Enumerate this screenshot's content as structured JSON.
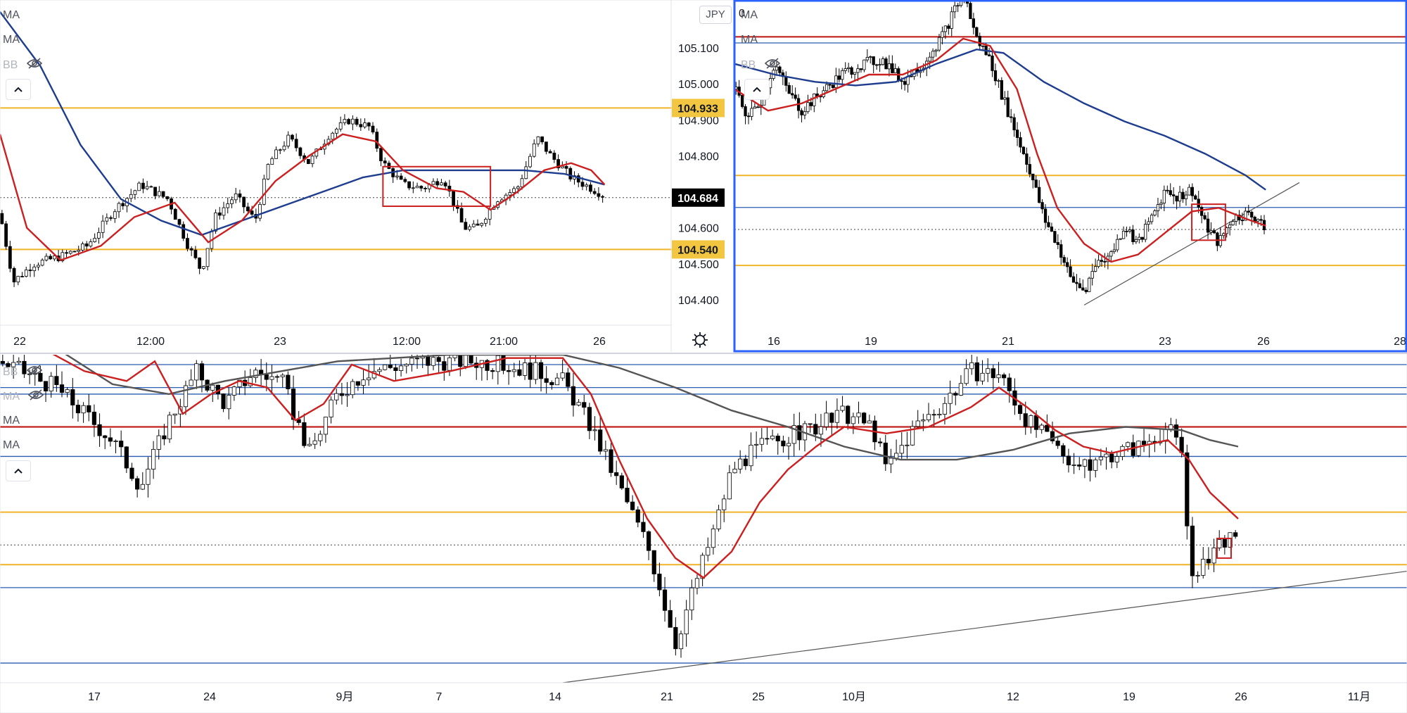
{
  "currency_button": "JPY",
  "indicators": {
    "ma": "MA",
    "bb": "BB"
  },
  "icons": {
    "eye_hidden": "eye-off-icon",
    "collapse": "chevron-up-icon",
    "settings": "gear-icon"
  },
  "colors": {
    "ma_fast": "#cc1f1f",
    "ma_slow_blue": "#1e3d8f",
    "ma_slow_gray": "#555555",
    "horizontal_orange": "#f0b429",
    "horizontal_red": "#c0201d",
    "horizontal_blue": "#2a5db0",
    "highlight_box": "#cc1f1f",
    "active_border": "#2962ff",
    "price_label_gold": "#f2c641",
    "price_label_black": "#000000"
  },
  "chart_data": [
    {
      "type": "candlestick",
      "panel": "top-left",
      "timeframe_hint": "intraday",
      "x_ticks": [
        "22",
        "12:00",
        "23",
        "12:00",
        "21:00",
        "26"
      ],
      "y_axis": {
        "ticks": [
          "105.100",
          "105.000",
          "104.900",
          "104.800",
          "104.600",
          "104.500",
          "104.400"
        ],
        "ylim": [
          104.34,
          105.2
        ]
      },
      "price_labels": [
        {
          "text": "104.933",
          "value": 104.933,
          "style": "gold"
        },
        {
          "text": "104.684",
          "value": 104.684,
          "style": "black"
        },
        {
          "text": "104.540",
          "value": 104.54,
          "style": "gold"
        }
      ],
      "horizontal_lines": [
        {
          "value": 104.933,
          "color": "orange"
        },
        {
          "value": 104.54,
          "color": "orange"
        },
        {
          "value": 104.684,
          "color": "dotted"
        }
      ],
      "highlight_box": {
        "x_start": 0.57,
        "x_end": 0.73,
        "y_top": 104.77,
        "y_bottom": 104.66
      },
      "close_path": [
        [
          0.0,
          104.64
        ],
        [
          0.02,
          104.45
        ],
        [
          0.05,
          104.5
        ],
        [
          0.09,
          104.52
        ],
        [
          0.13,
          104.55
        ],
        [
          0.17,
          104.65
        ],
        [
          0.21,
          104.72
        ],
        [
          0.25,
          104.68
        ],
        [
          0.28,
          104.55
        ],
        [
          0.3,
          104.48
        ],
        [
          0.32,
          104.63
        ],
        [
          0.35,
          104.69
        ],
        [
          0.38,
          104.62
        ],
        [
          0.4,
          104.78
        ],
        [
          0.43,
          104.85
        ],
        [
          0.46,
          104.78
        ],
        [
          0.49,
          104.86
        ],
        [
          0.52,
          104.9
        ],
        [
          0.55,
          104.88
        ],
        [
          0.57,
          104.78
        ],
        [
          0.6,
          104.72
        ],
        [
          0.63,
          104.71
        ],
        [
          0.66,
          104.74
        ],
        [
          0.69,
          104.6
        ],
        [
          0.71,
          104.6
        ],
        [
          0.74,
          104.68
        ],
        [
          0.77,
          104.71
        ],
        [
          0.8,
          104.85
        ],
        [
          0.82,
          104.8
        ],
        [
          0.85,
          104.74
        ],
        [
          0.88,
          104.71
        ],
        [
          0.9,
          104.69
        ]
      ],
      "ma_fast_path": [
        [
          0.0,
          104.86
        ],
        [
          0.04,
          104.6
        ],
        [
          0.09,
          104.51
        ],
        [
          0.15,
          104.55
        ],
        [
          0.2,
          104.63
        ],
        [
          0.26,
          104.67
        ],
        [
          0.31,
          104.56
        ],
        [
          0.36,
          104.62
        ],
        [
          0.41,
          104.73
        ],
        [
          0.46,
          104.8
        ],
        [
          0.51,
          104.86
        ],
        [
          0.56,
          104.84
        ],
        [
          0.6,
          104.76
        ],
        [
          0.65,
          104.71
        ],
        [
          0.69,
          104.7
        ],
        [
          0.73,
          104.65
        ],
        [
          0.77,
          104.7
        ],
        [
          0.81,
          104.76
        ],
        [
          0.85,
          104.78
        ],
        [
          0.88,
          104.76
        ],
        [
          0.9,
          104.72
        ]
      ],
      "ma_slow_path": [
        [
          0.0,
          105.2
        ],
        [
          0.06,
          105.05
        ],
        [
          0.12,
          104.83
        ],
        [
          0.18,
          104.68
        ],
        [
          0.24,
          104.62
        ],
        [
          0.3,
          104.58
        ],
        [
          0.36,
          104.62
        ],
        [
          0.42,
          104.66
        ],
        [
          0.48,
          104.7
        ],
        [
          0.54,
          104.74
        ],
        [
          0.6,
          104.76
        ],
        [
          0.66,
          104.76
        ],
        [
          0.72,
          104.76
        ],
        [
          0.78,
          104.76
        ],
        [
          0.84,
          104.75
        ],
        [
          0.9,
          104.72
        ]
      ]
    },
    {
      "type": "candlestick",
      "panel": "top-right",
      "x_ticks": [
        "16",
        "19",
        "21",
        "23",
        "26",
        "28"
      ],
      "horizontal_lines": [
        {
          "value": 105.125,
          "color": "red"
        },
        {
          "value": 105.108,
          "color": "blue"
        },
        {
          "value": 104.74,
          "color": "orange"
        },
        {
          "value": 104.651,
          "color": "blue"
        },
        {
          "value": 104.59,
          "color": "dotted"
        },
        {
          "value": 104.49,
          "color": "orange"
        }
      ],
      "trendline": [
        [
          0.52,
          104.38
        ],
        [
          0.84,
          104.72
        ]
      ],
      "highlight_box": {
        "x_start": 0.68,
        "x_end": 0.73,
        "y_top": 104.66,
        "y_bottom": 104.56
      },
      "close_path": [
        [
          0.0,
          104.98
        ],
        [
          0.02,
          104.9
        ],
        [
          0.04,
          104.95
        ],
        [
          0.06,
          105.05
        ],
        [
          0.08,
          104.97
        ],
        [
          0.1,
          104.92
        ],
        [
          0.13,
          104.97
        ],
        [
          0.16,
          105.02
        ],
        [
          0.19,
          105.05
        ],
        [
          0.22,
          105.06
        ],
        [
          0.25,
          105.0
        ],
        [
          0.28,
          105.05
        ],
        [
          0.31,
          105.13
        ],
        [
          0.34,
          105.25
        ],
        [
          0.36,
          105.12
        ],
        [
          0.38,
          105.06
        ],
        [
          0.4,
          104.95
        ],
        [
          0.42,
          104.85
        ],
        [
          0.44,
          104.75
        ],
        [
          0.46,
          104.62
        ],
        [
          0.48,
          104.55
        ],
        [
          0.5,
          104.45
        ],
        [
          0.52,
          104.42
        ],
        [
          0.54,
          104.5
        ],
        [
          0.56,
          104.52
        ],
        [
          0.58,
          104.6
        ],
        [
          0.6,
          104.55
        ],
        [
          0.62,
          104.62
        ],
        [
          0.64,
          104.7
        ],
        [
          0.66,
          104.68
        ],
        [
          0.68,
          104.7
        ],
        [
          0.7,
          104.6
        ],
        [
          0.72,
          104.55
        ],
        [
          0.74,
          104.62
        ],
        [
          0.76,
          104.63
        ],
        [
          0.78,
          104.62
        ],
        [
          0.79,
          104.6
        ]
      ],
      "ma_fast_path": [
        [
          0.0,
          104.98
        ],
        [
          0.05,
          104.92
        ],
        [
          0.1,
          104.94
        ],
        [
          0.15,
          104.98
        ],
        [
          0.2,
          105.02
        ],
        [
          0.25,
          105.02
        ],
        [
          0.3,
          105.06
        ],
        [
          0.34,
          105.12
        ],
        [
          0.38,
          105.1
        ],
        [
          0.42,
          104.98
        ],
        [
          0.45,
          104.8
        ],
        [
          0.48,
          104.65
        ],
        [
          0.52,
          104.55
        ],
        [
          0.56,
          104.5
        ],
        [
          0.6,
          104.52
        ],
        [
          0.64,
          104.58
        ],
        [
          0.68,
          104.64
        ],
        [
          0.72,
          104.65
        ],
        [
          0.76,
          104.62
        ],
        [
          0.79,
          104.6
        ]
      ],
      "ma_slow_path": [
        [
          0.0,
          105.05
        ],
        [
          0.06,
          105.02
        ],
        [
          0.12,
          105.0
        ],
        [
          0.18,
          104.99
        ],
        [
          0.24,
          105.0
        ],
        [
          0.3,
          105.05
        ],
        [
          0.36,
          105.09
        ],
        [
          0.4,
          105.08
        ],
        [
          0.46,
          105.0
        ],
        [
          0.52,
          104.94
        ],
        [
          0.58,
          104.89
        ],
        [
          0.64,
          104.85
        ],
        [
          0.7,
          104.8
        ],
        [
          0.76,
          104.74
        ],
        [
          0.79,
          104.7
        ]
      ]
    },
    {
      "type": "candlestick",
      "panel": "bottom",
      "x_ticks": [
        "17",
        "24",
        "9月",
        "7",
        "14",
        "21",
        "25",
        "10月",
        "12",
        "19",
        "26",
        "11月"
      ],
      "horizontal_lines": [
        {
          "value": 0.97,
          "color": "blue"
        },
        {
          "value": 0.9,
          "color": "blue"
        },
        {
          "value": 0.88,
          "color": "blue"
        },
        {
          "value": 0.78,
          "color": "red"
        },
        {
          "value": 0.69,
          "color": "blue"
        },
        {
          "value": 0.52,
          "color": "orange"
        },
        {
          "value": 0.42,
          "color": "dotted"
        },
        {
          "value": 0.36,
          "color": "orange"
        },
        {
          "value": 0.29,
          "color": "blue"
        },
        {
          "value": 0.06,
          "color": "blue"
        }
      ],
      "trendline": [
        [
          0.4,
          0.0
        ],
        [
          1.0,
          0.34
        ]
      ],
      "highlight_box": {
        "x_start": 0.865,
        "x_end": 0.875,
        "y_top": 0.44,
        "y_bottom": 0.38
      },
      "close_path": [
        [
          0.0,
          0.98
        ],
        [
          0.04,
          0.9
        ],
        [
          0.08,
          0.74
        ],
        [
          0.1,
          0.6
        ],
        [
          0.12,
          0.8
        ],
        [
          0.14,
          0.95
        ],
        [
          0.16,
          0.85
        ],
        [
          0.18,
          0.95
        ],
        [
          0.2,
          0.92
        ],
        [
          0.22,
          0.7
        ],
        [
          0.24,
          0.88
        ],
        [
          0.26,
          0.95
        ],
        [
          0.3,
          0.98
        ],
        [
          0.34,
          0.98
        ],
        [
          0.38,
          0.95
        ],
        [
          0.4,
          0.92
        ],
        [
          0.42,
          0.78
        ],
        [
          0.44,
          0.6
        ],
        [
          0.46,
          0.42
        ],
        [
          0.47,
          0.28
        ],
        [
          0.48,
          0.12
        ],
        [
          0.49,
          0.25
        ],
        [
          0.51,
          0.5
        ],
        [
          0.52,
          0.65
        ],
        [
          0.54,
          0.72
        ],
        [
          0.56,
          0.75
        ],
        [
          0.58,
          0.78
        ],
        [
          0.6,
          0.82
        ],
        [
          0.62,
          0.78
        ],
        [
          0.63,
          0.65
        ],
        [
          0.65,
          0.78
        ],
        [
          0.67,
          0.85
        ],
        [
          0.69,
          0.95
        ],
        [
          0.71,
          0.94
        ],
        [
          0.73,
          0.8
        ],
        [
          0.75,
          0.72
        ],
        [
          0.77,
          0.65
        ],
        [
          0.79,
          0.7
        ],
        [
          0.81,
          0.72
        ],
        [
          0.83,
          0.78
        ],
        [
          0.84,
          0.7
        ],
        [
          0.845,
          0.4
        ],
        [
          0.85,
          0.3
        ],
        [
          0.86,
          0.4
        ],
        [
          0.87,
          0.44
        ],
        [
          0.88,
          0.42
        ]
      ],
      "ma_fast_path": [
        [
          0.0,
          1.08
        ],
        [
          0.03,
          1.02
        ],
        [
          0.06,
          0.95
        ],
        [
          0.09,
          0.92
        ],
        [
          0.11,
          0.98
        ],
        [
          0.13,
          0.82
        ],
        [
          0.15,
          0.88
        ],
        [
          0.17,
          0.92
        ],
        [
          0.19,
          0.9
        ],
        [
          0.21,
          0.8
        ],
        [
          0.23,
          0.85
        ],
        [
          0.25,
          0.97
        ],
        [
          0.28,
          0.92
        ],
        [
          0.32,
          0.95
        ],
        [
          0.36,
          0.99
        ],
        [
          0.4,
          0.99
        ],
        [
          0.42,
          0.88
        ],
        [
          0.44,
          0.68
        ],
        [
          0.46,
          0.5
        ],
        [
          0.48,
          0.38
        ],
        [
          0.5,
          0.32
        ],
        [
          0.52,
          0.4
        ],
        [
          0.54,
          0.55
        ],
        [
          0.56,
          0.65
        ],
        [
          0.58,
          0.72
        ],
        [
          0.6,
          0.78
        ],
        [
          0.63,
          0.76
        ],
        [
          0.66,
          0.78
        ],
        [
          0.69,
          0.84
        ],
        [
          0.71,
          0.9
        ],
        [
          0.73,
          0.84
        ],
        [
          0.75,
          0.77
        ],
        [
          0.77,
          0.72
        ],
        [
          0.79,
          0.7
        ],
        [
          0.81,
          0.72
        ],
        [
          0.83,
          0.74
        ],
        [
          0.845,
          0.68
        ],
        [
          0.86,
          0.58
        ],
        [
          0.88,
          0.5
        ]
      ],
      "ma_slow_path": [
        [
          0.0,
          1.02
        ],
        [
          0.04,
          1.02
        ],
        [
          0.08,
          0.91
        ],
        [
          0.12,
          0.88
        ],
        [
          0.16,
          0.92
        ],
        [
          0.2,
          0.95
        ],
        [
          0.24,
          0.98
        ],
        [
          0.28,
          0.99
        ],
        [
          0.32,
          1.0
        ],
        [
          0.36,
          1.0
        ],
        [
          0.4,
          1.0
        ],
        [
          0.44,
          0.96
        ],
        [
          0.48,
          0.9
        ],
        [
          0.52,
          0.83
        ],
        [
          0.56,
          0.78
        ],
        [
          0.6,
          0.72
        ],
        [
          0.64,
          0.68
        ],
        [
          0.68,
          0.68
        ],
        [
          0.72,
          0.71
        ],
        [
          0.76,
          0.76
        ],
        [
          0.8,
          0.78
        ],
        [
          0.84,
          0.77
        ],
        [
          0.86,
          0.74
        ],
        [
          0.88,
          0.72
        ]
      ]
    }
  ]
}
